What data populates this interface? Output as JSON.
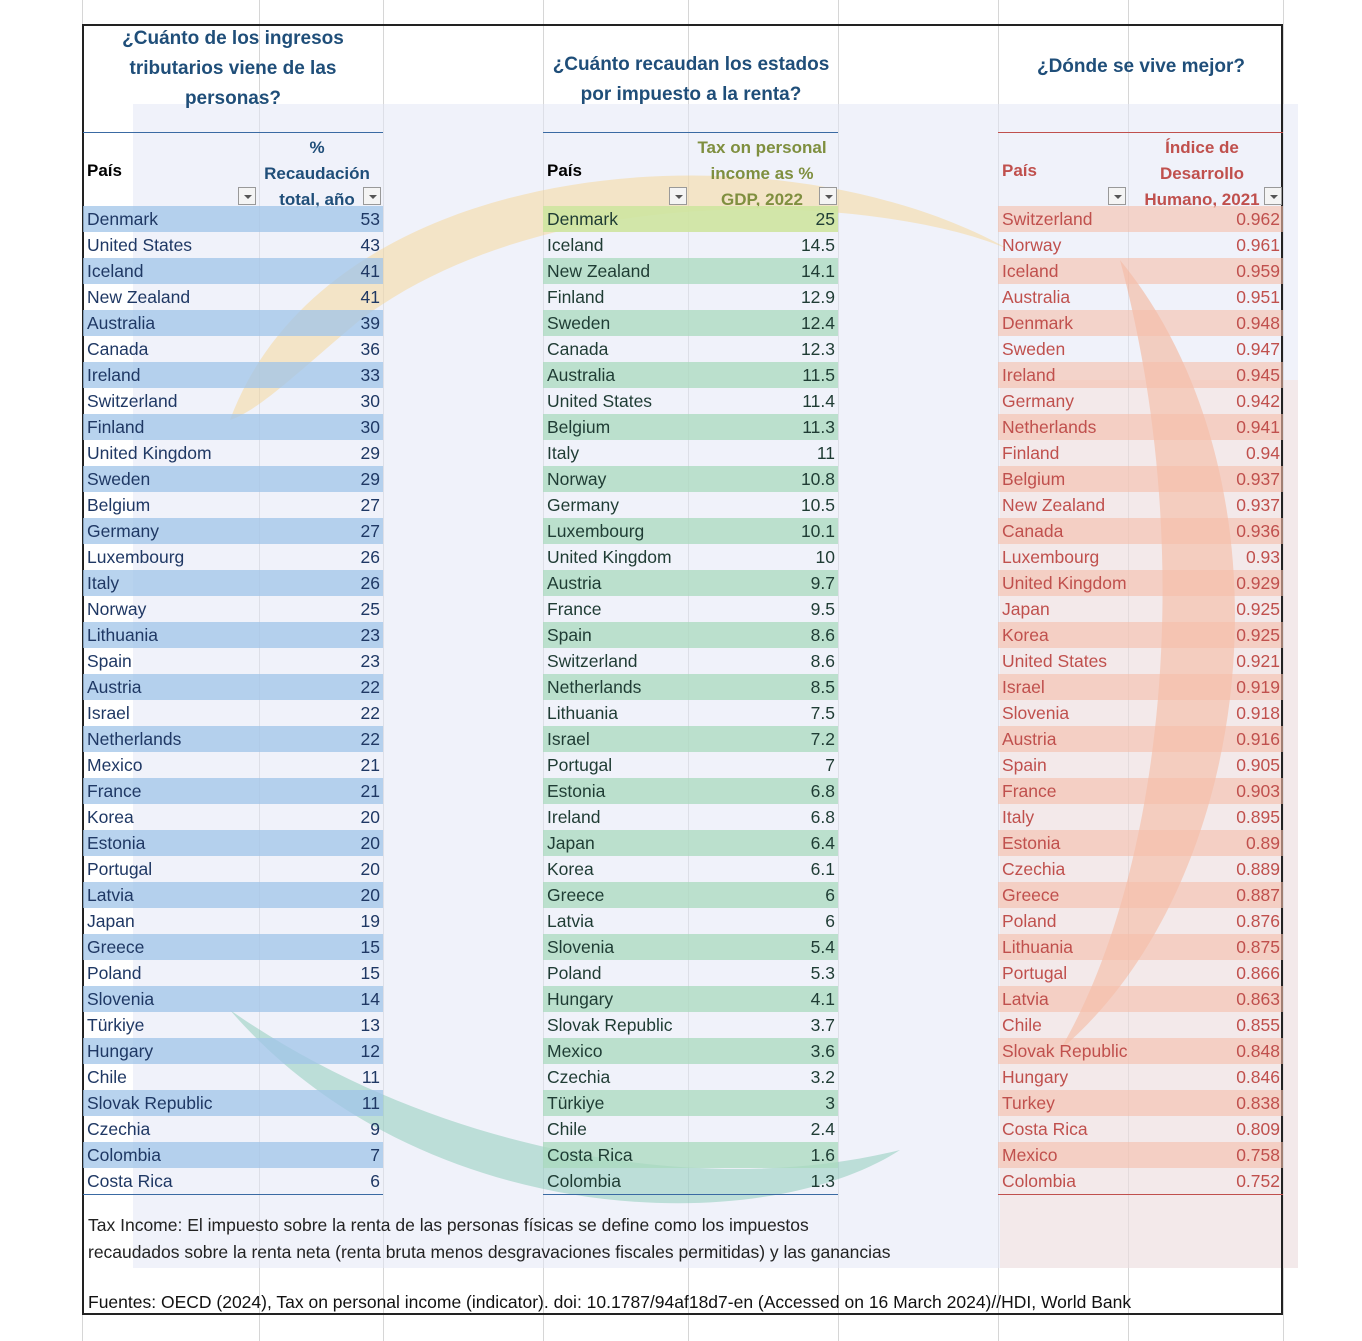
{
  "titles": {
    "personal_share": "¿Cuánto de los ingresos tributarios viene de las personas?",
    "income_tax": "¿Cuánto recaudan los estados por impuesto a la renta?",
    "hdi": "¿Dónde se vive mejor?"
  },
  "table1": {
    "header_country": "País",
    "header_value": "% Recaudación total, año",
    "rows": [
      {
        "country": "Denmark",
        "value": "53"
      },
      {
        "country": "United States",
        "value": "43"
      },
      {
        "country": "Iceland",
        "value": "41"
      },
      {
        "country": "New Zealand",
        "value": "41"
      },
      {
        "country": "Australia",
        "value": "39"
      },
      {
        "country": "Canada",
        "value": "36"
      },
      {
        "country": "Ireland",
        "value": "33"
      },
      {
        "country": "Switzerland",
        "value": "30"
      },
      {
        "country": "Finland",
        "value": "30"
      },
      {
        "country": "United Kingdom",
        "value": "29"
      },
      {
        "country": "Sweden",
        "value": "29"
      },
      {
        "country": "Belgium",
        "value": "27"
      },
      {
        "country": "Germany",
        "value": "27"
      },
      {
        "country": "Luxembourg",
        "value": "26"
      },
      {
        "country": "Italy",
        "value": "26"
      },
      {
        "country": "Norway",
        "value": "25"
      },
      {
        "country": "Lithuania",
        "value": "23"
      },
      {
        "country": "Spain",
        "value": "23"
      },
      {
        "country": "Austria",
        "value": "22"
      },
      {
        "country": "Israel",
        "value": "22"
      },
      {
        "country": "Netherlands",
        "value": "22"
      },
      {
        "country": "Mexico",
        "value": "21"
      },
      {
        "country": "France",
        "value": "21"
      },
      {
        "country": "Korea",
        "value": "20"
      },
      {
        "country": "Estonia",
        "value": "20"
      },
      {
        "country": "Portugal",
        "value": "20"
      },
      {
        "country": "Latvia",
        "value": "20"
      },
      {
        "country": "Japan",
        "value": "19"
      },
      {
        "country": "Greece",
        "value": "15"
      },
      {
        "country": "Poland",
        "value": "15"
      },
      {
        "country": "Slovenia",
        "value": "14"
      },
      {
        "country": "Türkiye",
        "value": "13"
      },
      {
        "country": "Hungary",
        "value": "12"
      },
      {
        "country": "Chile",
        "value": "11"
      },
      {
        "country": "Slovak Republic",
        "value": "11"
      },
      {
        "country": "Czechia",
        "value": "9"
      },
      {
        "country": "Colombia",
        "value": "7"
      },
      {
        "country": "Costa Rica",
        "value": "6"
      }
    ]
  },
  "table2": {
    "header_country": "País",
    "header_value": "Tax on personal income as % GDP, 2022",
    "rows": [
      {
        "country": "Denmark",
        "value": "25"
      },
      {
        "country": "Iceland",
        "value": "14.5"
      },
      {
        "country": "New Zealand",
        "value": "14.1"
      },
      {
        "country": "Finland",
        "value": "12.9"
      },
      {
        "country": "Sweden",
        "value": "12.4"
      },
      {
        "country": "Canada",
        "value": "12.3"
      },
      {
        "country": "Australia",
        "value": "11.5"
      },
      {
        "country": "United States",
        "value": "11.4"
      },
      {
        "country": "Belgium",
        "value": "11.3"
      },
      {
        "country": "Italy",
        "value": "11"
      },
      {
        "country": "Norway",
        "value": "10.8"
      },
      {
        "country": "Germany",
        "value": "10.5"
      },
      {
        "country": "Luxembourg",
        "value": "10.1"
      },
      {
        "country": "United Kingdom",
        "value": "10"
      },
      {
        "country": "Austria",
        "value": "9.7"
      },
      {
        "country": "France",
        "value": "9.5"
      },
      {
        "country": "Spain",
        "value": "8.6"
      },
      {
        "country": "Switzerland",
        "value": "8.6"
      },
      {
        "country": "Netherlands",
        "value": "8.5"
      },
      {
        "country": "Lithuania",
        "value": "7.5"
      },
      {
        "country": "Israel",
        "value": "7.2"
      },
      {
        "country": "Portugal",
        "value": "7"
      },
      {
        "country": "Estonia",
        "value": "6.8"
      },
      {
        "country": "Ireland",
        "value": "6.8"
      },
      {
        "country": "Japan",
        "value": "6.4"
      },
      {
        "country": "Korea",
        "value": "6.1"
      },
      {
        "country": "Greece",
        "value": "6"
      },
      {
        "country": "Latvia",
        "value": "6"
      },
      {
        "country": "Slovenia",
        "value": "5.4"
      },
      {
        "country": "Poland",
        "value": "5.3"
      },
      {
        "country": "Hungary",
        "value": "4.1"
      },
      {
        "country": "Slovak Republic",
        "value": "3.7"
      },
      {
        "country": "Mexico",
        "value": "3.6"
      },
      {
        "country": "Czechia",
        "value": "3.2"
      },
      {
        "country": "Türkiye",
        "value": "3"
      },
      {
        "country": "Chile",
        "value": "2.4"
      },
      {
        "country": "Costa Rica",
        "value": "1.6"
      },
      {
        "country": "Colombia",
        "value": "1.3"
      }
    ]
  },
  "table3": {
    "header_country": "País",
    "header_value": "Índice de Desarrollo Humano, 2021",
    "rows": [
      {
        "country": "Switzerland",
        "value": "0.962"
      },
      {
        "country": "Norway",
        "value": "0.961"
      },
      {
        "country": "Iceland",
        "value": "0.959"
      },
      {
        "country": "Australia",
        "value": "0.951"
      },
      {
        "country": "Denmark",
        "value": "0.948"
      },
      {
        "country": "Sweden",
        "value": "0.947"
      },
      {
        "country": "Ireland",
        "value": "0.945"
      },
      {
        "country": "Germany",
        "value": "0.942"
      },
      {
        "country": "Netherlands",
        "value": "0.941"
      },
      {
        "country": "Finland",
        "value": "0.94"
      },
      {
        "country": "Belgium",
        "value": "0.937"
      },
      {
        "country": "New Zealand",
        "value": "0.937"
      },
      {
        "country": "Canada",
        "value": "0.936"
      },
      {
        "country": "Luxembourg",
        "value": "0.93"
      },
      {
        "country": "United Kingdom",
        "value": "0.929"
      },
      {
        "country": "Japan",
        "value": "0.925"
      },
      {
        "country": "Korea",
        "value": "0.925"
      },
      {
        "country": "United States",
        "value": "0.921"
      },
      {
        "country": "Israel",
        "value": "0.919"
      },
      {
        "country": "Slovenia",
        "value": "0.918"
      },
      {
        "country": "Austria",
        "value": "0.916"
      },
      {
        "country": "Spain",
        "value": "0.905"
      },
      {
        "country": "France",
        "value": "0.903"
      },
      {
        "country": "Italy",
        "value": "0.895"
      },
      {
        "country": "Estonia",
        "value": "0.89"
      },
      {
        "country": "Czechia",
        "value": "0.889"
      },
      {
        "country": "Greece",
        "value": "0.887"
      },
      {
        "country": "Poland",
        "value": "0.876"
      },
      {
        "country": "Lithuania",
        "value": "0.875"
      },
      {
        "country": "Portugal",
        "value": "0.866"
      },
      {
        "country": "Latvia",
        "value": "0.863"
      },
      {
        "country": "Chile",
        "value": "0.855"
      },
      {
        "country": "Slovak Republic",
        "value": "0.848"
      },
      {
        "country": "Hungary",
        "value": "0.846"
      },
      {
        "country": "Turkey",
        "value": "0.838"
      },
      {
        "country": "Costa Rica",
        "value": "0.809"
      },
      {
        "country": "Mexico",
        "value": "0.758"
      },
      {
        "country": "Colombia",
        "value": "0.752"
      }
    ]
  },
  "note": {
    "line1": "Tax Income: El impuesto sobre la renta de las personas físicas se define como los impuestos",
    "line2": "recaudados sobre la renta neta (renta bruta menos desgravaciones fiscales permitidas) y las ganancias"
  },
  "sources": "Fuentes: OECD (2024), Tax on personal income (indicator). doi: 10.1787/94af18d7-en (Accessed on 16 March 2024)//HDI, World Bank",
  "colors": {
    "blue_band": "#b7d3ee",
    "green_band": "#b9e0c9",
    "green_top": "#d2e7a6",
    "salmon_band": "#f8cbb8",
    "title_blue": "#1f4e79",
    "hdi_text": "#c0504d",
    "gdp_head": "#7f8f3f"
  }
}
